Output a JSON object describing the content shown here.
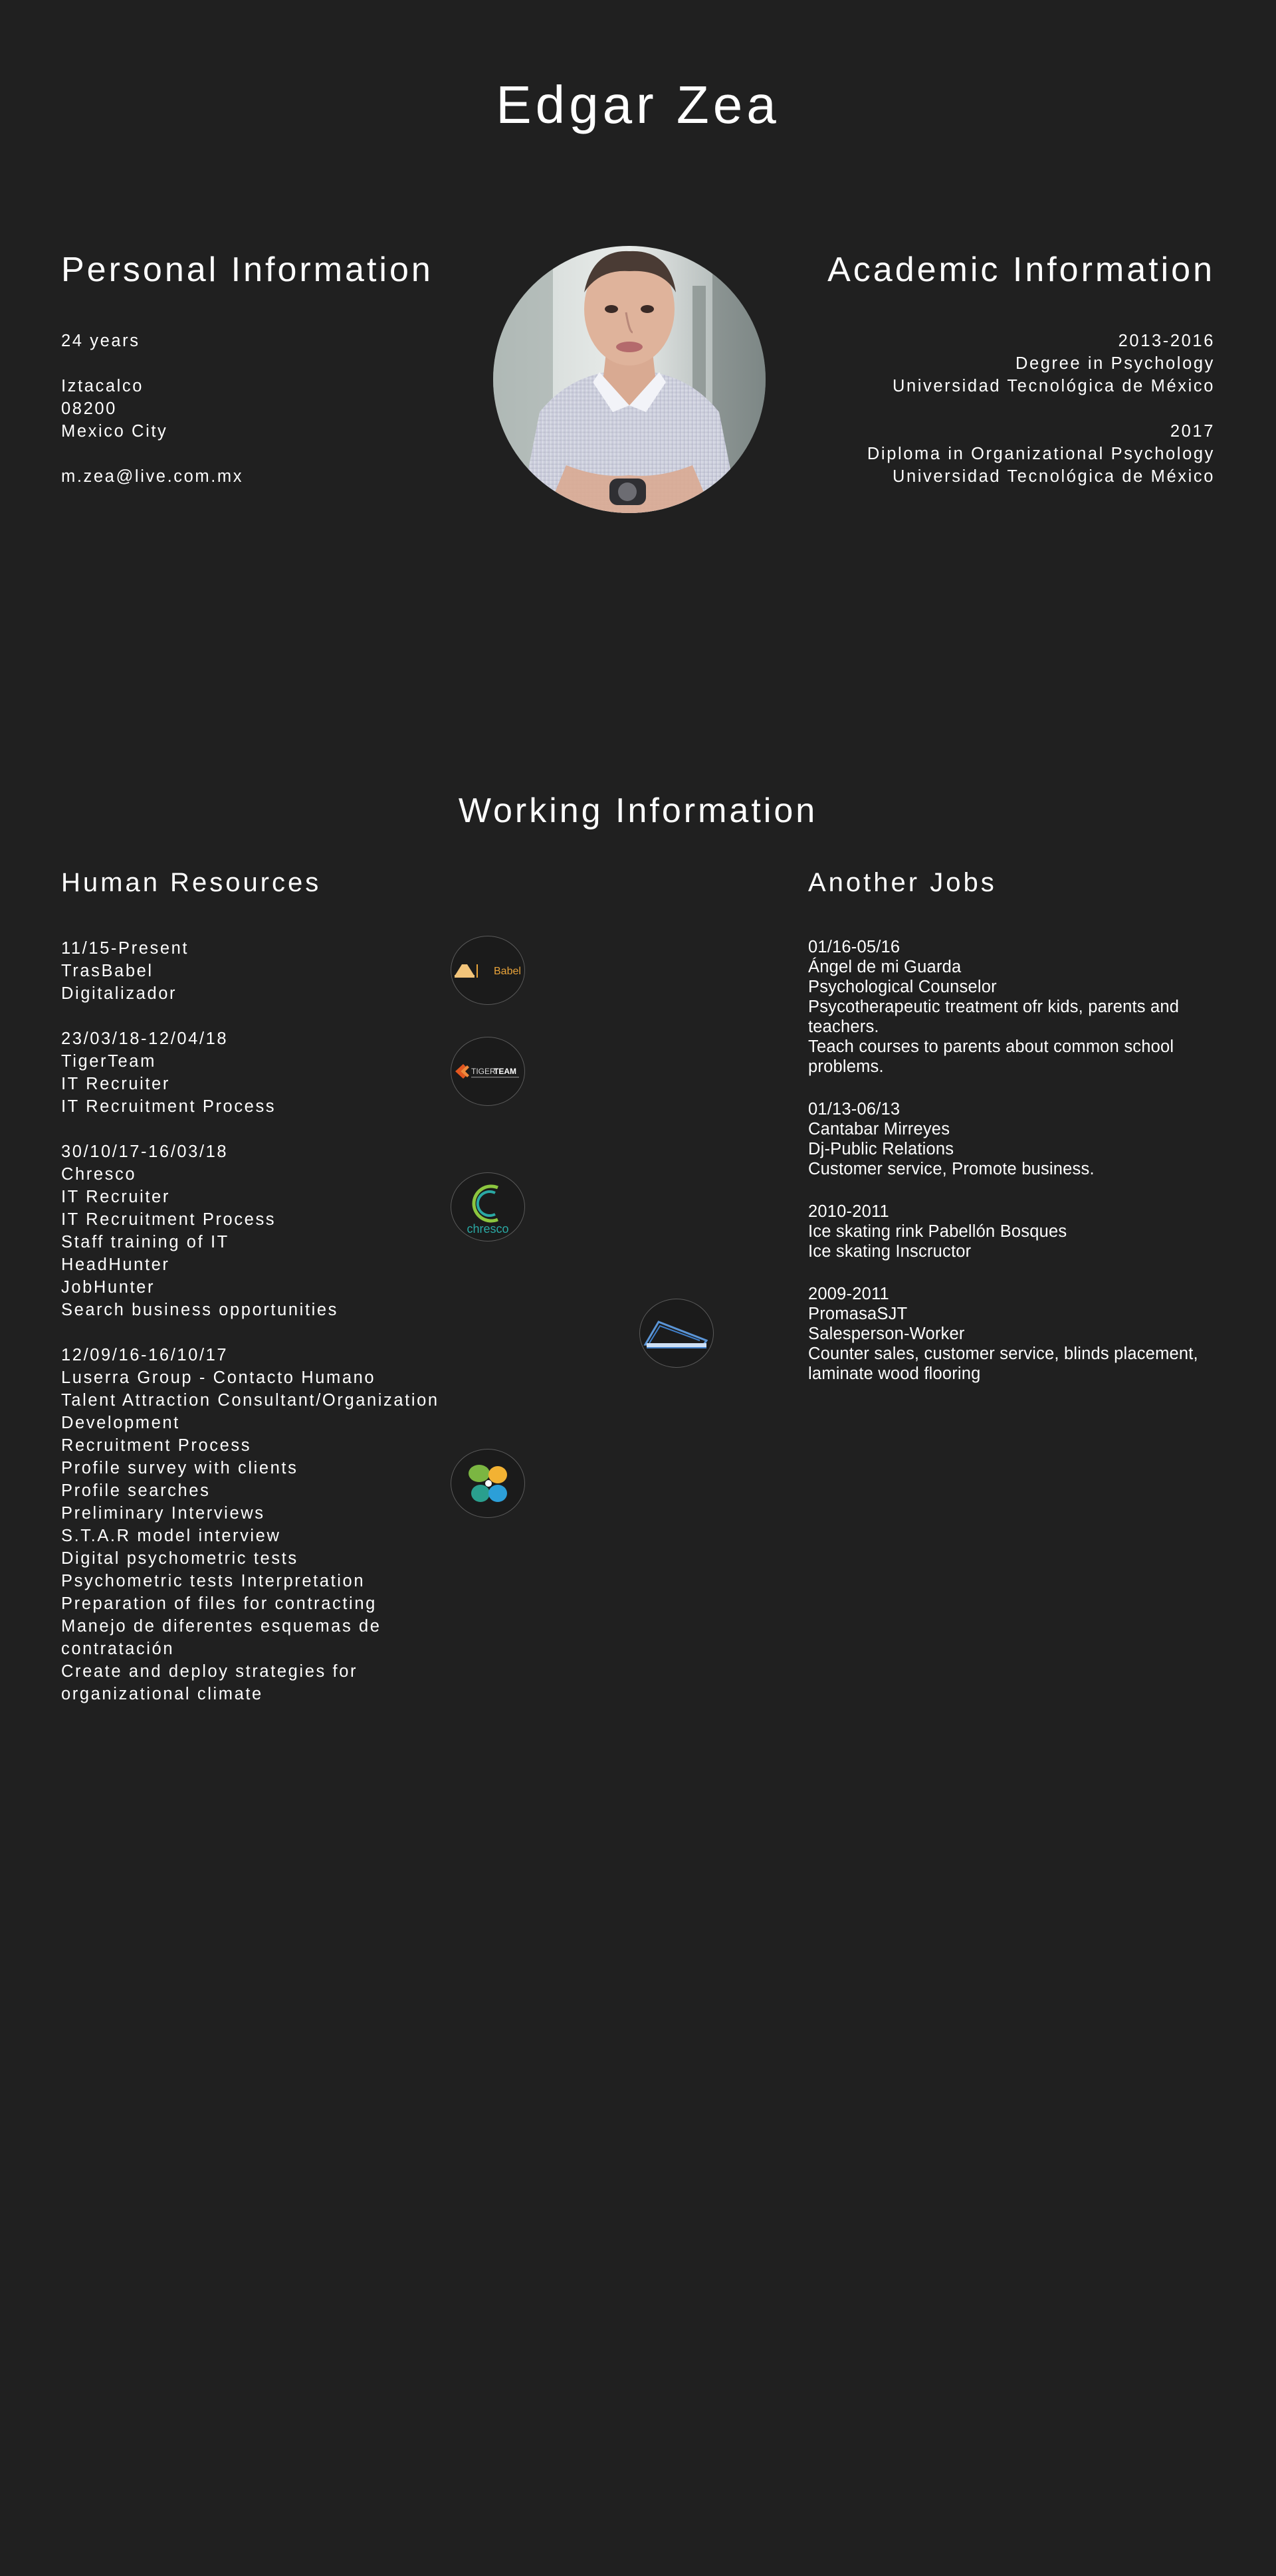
{
  "header": {
    "name": "Edgar Zea"
  },
  "personal": {
    "title": "Personal Information",
    "age": "24 years",
    "address": [
      "Iztacalco",
      "08200",
      "Mexico City"
    ],
    "email": "m.zea@live.com.mx"
  },
  "academic": {
    "title": "Academic Information",
    "entries": [
      {
        "years": "2013-2016",
        "degree": "Degree in Psychology",
        "school": "Universidad Tecnológica de México"
      },
      {
        "years": "2017",
        "degree": "Diploma in Organizational Psychology",
        "school": "Universidad Tecnológica de México"
      }
    ]
  },
  "working": {
    "title": "Working Information",
    "hr": {
      "title": "Human Resources",
      "entries": [
        {
          "lines": [
            "11/15-Present",
            "TrasBabel",
            "Digitalizador"
          ]
        },
        {
          "lines": [
            "23/03/18-12/04/18",
            "TigerTeam",
            "IT Recruiter",
            "IT Recruitment Process"
          ]
        },
        {
          "lines": [
            "30/10/17-16/03/18",
            "Chresco",
            "IT Recruiter",
            "IT Recruitment Process",
            "Staff training of IT",
            "HeadHunter",
            "JobHunter",
            "Search business opportunities"
          ]
        },
        {
          "lines": [
            "12/09/16-16/10/17",
            "Luserra Group - Contacto Humano",
            "Talent Attraction Consultant/Organization",
            "Development",
            "Recruitment Process",
            "Profile survey with clients",
            "Profile searches",
            "Preliminary Interviews",
            "S.T.A.R model interview",
            "Digital psychometric tests",
            "Psychometric tests Interpretation",
            "Preparation of files for contracting",
            "Manejo de diferentes esquemas de",
            "contratación",
            "Create and deploy strategies for",
            "organizational climate"
          ]
        }
      ]
    },
    "other": {
      "title": "Another Jobs",
      "entries": [
        {
          "lines": [
            "01/16-05/16",
            "Ángel de mi Guarda",
            "Psychological Counselor",
            "Psycotherapeutic treatment ofr kids, parents and teachers.",
            "Teach courses to parents about common school problems."
          ]
        },
        {
          "lines": [
            "01/13-06/13",
            "Cantabar Mirreyes",
            "Dj-Public Relations",
            "Customer service, Promote business."
          ]
        },
        {
          "lines": [
            "2010-2011",
            "Ice skating rink Pabellón Bosques",
            "Ice skating Inscructor"
          ]
        },
        {
          "lines": [
            "2009-2011",
            "PromasaSJT",
            "Salesperson-Worker",
            "Counter sales, customer service, blinds placement, laminate wood flooring"
          ]
        }
      ]
    },
    "logos": {
      "trasbabel": {
        "icon": "trasbabel-logo-icon",
        "text": "Babel"
      },
      "tigerteam": {
        "icon": "tigerteam-logo-icon",
        "text_a": "TIGER",
        "text_b": "TEAM"
      },
      "chresco": {
        "icon": "chresco-logo-icon",
        "text": "chresco"
      },
      "promasa": {
        "icon": "promasa-logo-icon"
      },
      "luserra": {
        "icon": "luserra-logo-icon"
      }
    }
  },
  "colors": {
    "background": "#202020",
    "text": "#ffffff",
    "babel_orange": "#e8a33a",
    "tiger_orange": "#e2561f",
    "chresco_teal": "#2aa9a4",
    "chresco_green": "#8cc63f",
    "promasa_blue": "#3f7ec8"
  }
}
